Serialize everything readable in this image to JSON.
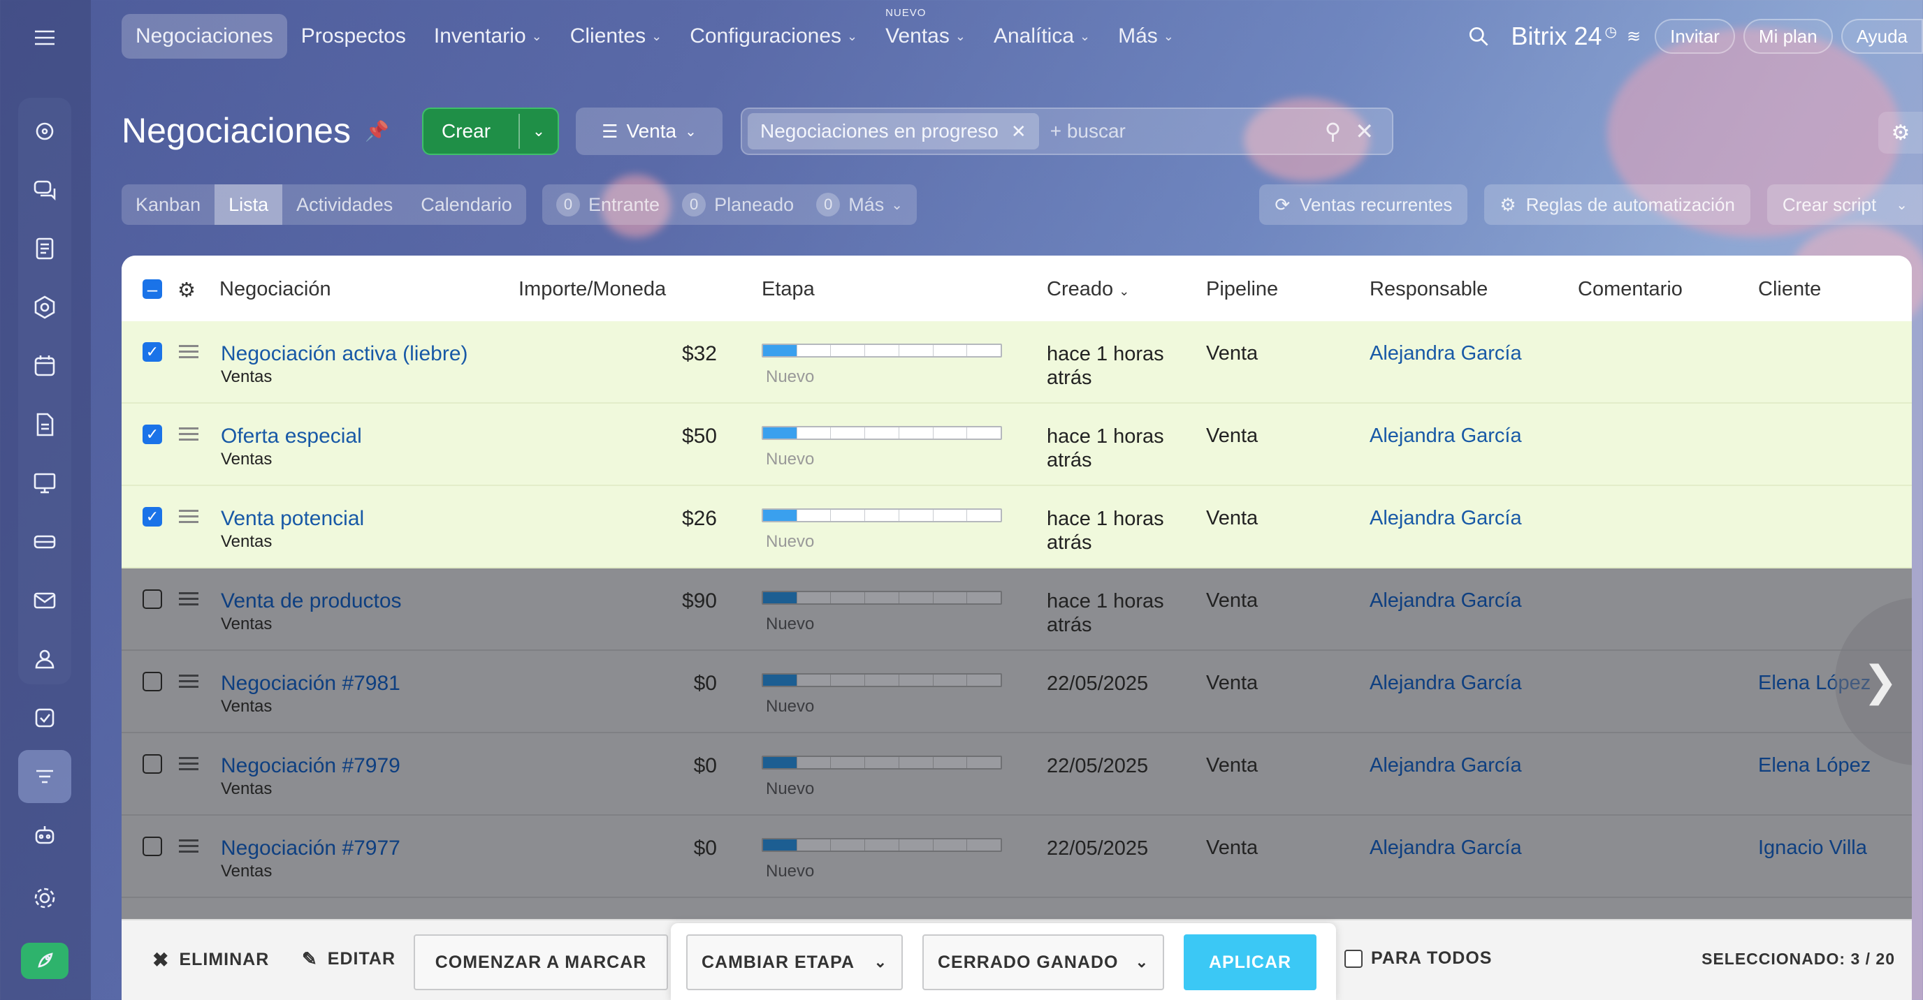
{
  "nav": {
    "items": [
      {
        "label": "Negociaciones",
        "active": true,
        "chevron": false
      },
      {
        "label": "Prospectos",
        "active": false,
        "chevron": false
      },
      {
        "label": "Inventario",
        "active": false,
        "chevron": true
      },
      {
        "label": "Clientes",
        "active": false,
        "chevron": true
      },
      {
        "label": "Configuraciones",
        "active": false,
        "chevron": true
      },
      {
        "label": "Ventas",
        "active": false,
        "chevron": true,
        "badge": "NUEVO"
      },
      {
        "label": "Analítica",
        "active": false,
        "chevron": true
      },
      {
        "label": "Más",
        "active": false,
        "chevron": true
      }
    ],
    "brand": "Bitrix 24",
    "invite": "Invitar",
    "plan": "Mi plan",
    "help": "Ayuda"
  },
  "header": {
    "title": "Negociaciones",
    "create": "Crear",
    "pipeline": "Venta",
    "filter_tag": "Negociaciones en progreso",
    "search_placeholder": "+ buscar"
  },
  "views": {
    "tabs": [
      "Kanban",
      "Lista",
      "Actividades",
      "Calendario"
    ],
    "active": "Lista",
    "counters": [
      {
        "num": "0",
        "label": "Entrante"
      },
      {
        "num": "0",
        "label": "Planeado"
      },
      {
        "num": "0",
        "label": "Más"
      }
    ],
    "recurring": "Ventas recurrentes",
    "automation": "Reglas de automatización",
    "script": "Crear script"
  },
  "table": {
    "columns": {
      "deal": "Negociación",
      "amount": "Importe/Moneda",
      "stage": "Etapa",
      "created": "Creado",
      "pipeline": "Pipeline",
      "responsible": "Responsable",
      "comment": "Comentario",
      "client": "Cliente"
    },
    "rows": [
      {
        "title": "Negociación activa (liebre)",
        "sub": "Ventas",
        "amount": "$32",
        "stage": "Nuevo",
        "stage_progress": 1,
        "created": "hace 1 horas atrás",
        "pipeline": "Venta",
        "responsible": "Alejandra García",
        "client": "",
        "selected": true
      },
      {
        "title": "Oferta especial",
        "sub": "Ventas",
        "amount": "$50",
        "stage": "Nuevo",
        "stage_progress": 1,
        "created": "hace 1 horas atrás",
        "pipeline": "Venta",
        "responsible": "Alejandra García",
        "client": "",
        "selected": true
      },
      {
        "title": "Venta potencial",
        "sub": "Ventas",
        "amount": "$26",
        "stage": "Nuevo",
        "stage_progress": 1,
        "created": "hace 1 horas atrás",
        "pipeline": "Venta",
        "responsible": "Alejandra García",
        "client": "",
        "selected": true
      },
      {
        "title": "Venta de productos",
        "sub": "Ventas",
        "amount": "$90",
        "stage": "Nuevo",
        "stage_progress": 1,
        "created": "hace 1 horas atrás",
        "pipeline": "Venta",
        "responsible": "Alejandra García",
        "client": "",
        "selected": false
      },
      {
        "title": "Negociación #7981",
        "sub": "Ventas",
        "amount": "$0",
        "stage": "Nuevo",
        "stage_progress": 1,
        "created": "22/05/2025",
        "pipeline": "Venta",
        "responsible": "Alejandra García",
        "client": "Elena López",
        "selected": false
      },
      {
        "title": "Negociación #7979",
        "sub": "Ventas",
        "amount": "$0",
        "stage": "Nuevo",
        "stage_progress": 1,
        "created": "22/05/2025",
        "pipeline": "Venta",
        "responsible": "Alejandra García",
        "client": "Elena López",
        "selected": false
      },
      {
        "title": "Negociación #7977",
        "sub": "Ventas",
        "amount": "$0",
        "stage": "Nuevo",
        "stage_progress": 1,
        "created": "22/05/2025",
        "pipeline": "Venta",
        "responsible": "Alejandra García",
        "client": "Ignacio Villa",
        "selected": false
      }
    ],
    "stage_segments": 7
  },
  "actions": {
    "delete": "ELIMINAR",
    "edit": "EDITAR",
    "start_mark": "COMENZAR A MARCAR",
    "change_stage": "CAMBIAR ETAPA",
    "stage_value": "CERRADO GANADO",
    "apply": "APLICAR",
    "for_all": "PARA TODOS",
    "selected_label": "SELECCIONADO:",
    "selected_count": "3 / 20"
  },
  "colors": {
    "accent": "#3bc8f5",
    "create_green": "#1f8f47",
    "link_blue": "#1859a6",
    "stage_fill": "#3aa0ee",
    "selected_row": "#f0f9dc"
  }
}
